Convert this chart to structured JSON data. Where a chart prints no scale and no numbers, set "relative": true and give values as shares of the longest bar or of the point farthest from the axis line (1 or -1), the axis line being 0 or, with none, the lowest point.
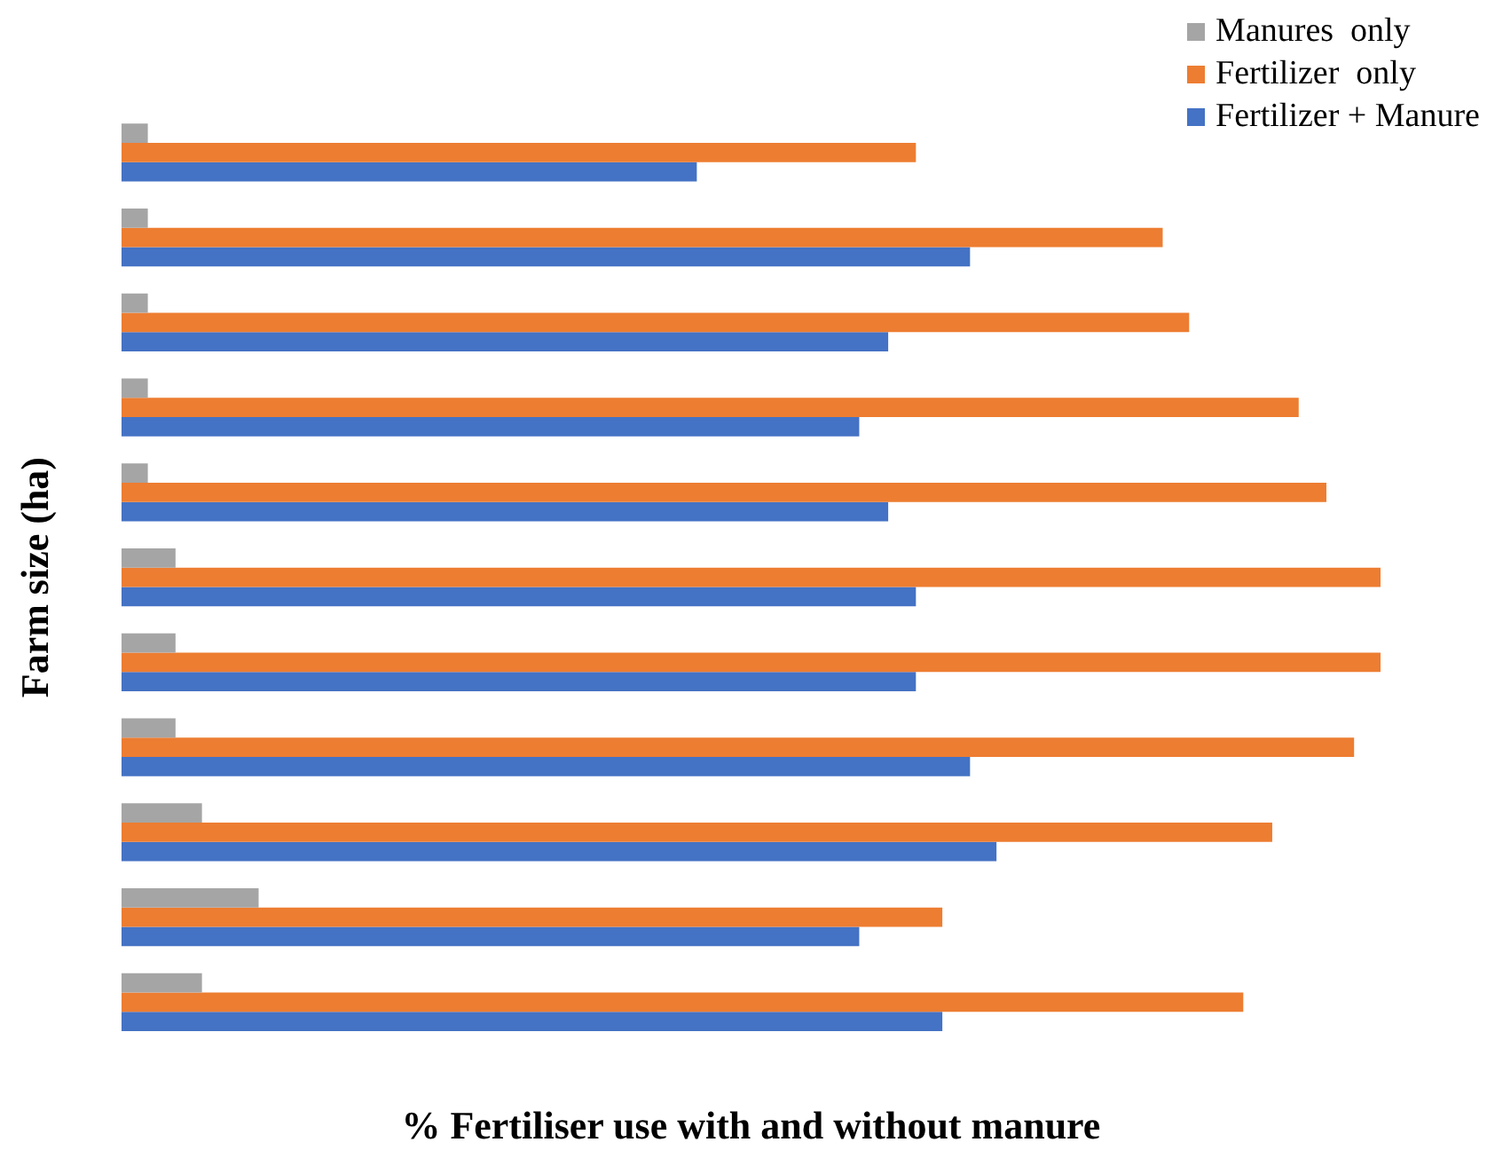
{
  "chart_data": {
    "type": "bar",
    "orientation": "horizontal",
    "relative": true,
    "xlabel": "% Fertiliser use with and without manure",
    "ylabel": "Farm size (ha)",
    "legend": "top right",
    "categories": [
      null,
      null,
      null,
      null,
      null,
      null,
      null,
      null,
      null,
      null,
      null
    ],
    "series": [
      {
        "name": "Manures  only",
        "color": "#a5a5a5",
        "values": [
          0.021,
          0.021,
          0.021,
          0.021,
          0.021,
          0.043,
          0.043,
          0.043,
          0.064,
          0.109,
          0.064
        ]
      },
      {
        "name": "Fertilizer  only",
        "color": "#ed7d31",
        "values": [
          0.631,
          0.827,
          0.848,
          0.935,
          0.957,
          1,
          1,
          0.979,
          0.914,
          0.652,
          0.891
        ]
      },
      {
        "name": "Fertilizer + Manure",
        "color": "#4472c4",
        "values": [
          0.457,
          0.674,
          0.609,
          0.586,
          0.609,
          0.631,
          0.631,
          0.674,
          0.695,
          0.586,
          0.652
        ]
      }
    ]
  }
}
